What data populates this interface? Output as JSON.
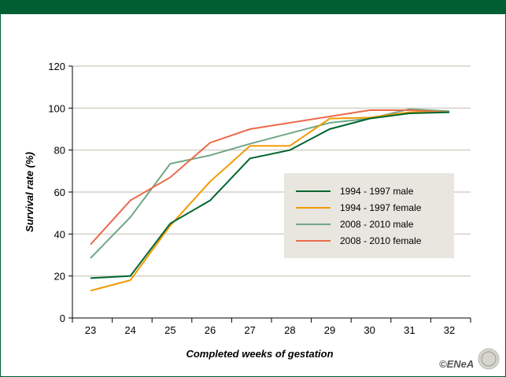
{
  "chart_data": {
    "type": "line",
    "xlabel": "Completed weeks of gestation",
    "ylabel": "Survival rate (%)",
    "ylim": [
      0,
      120
    ],
    "yticks": [
      0,
      20,
      40,
      60,
      80,
      100,
      120
    ],
    "x": [
      23,
      24,
      25,
      26,
      27,
      28,
      29,
      30,
      31,
      32
    ],
    "grid": true,
    "legend_position": "center-right",
    "series": [
      {
        "name": "1994 - 1997 male",
        "color": "#00662f",
        "values": [
          19,
          20,
          45,
          56,
          76,
          80,
          90,
          95,
          97.5,
          98
        ]
      },
      {
        "name": "1994 - 1997 female",
        "color": "#f29a00",
        "values": [
          13,
          18,
          44,
          65,
          82,
          82,
          95,
          95.5,
          98,
          98
        ]
      },
      {
        "name": "2008 - 2010 male",
        "color": "#6fa785",
        "values": [
          28.5,
          48,
          73.5,
          77.5,
          83,
          88,
          93,
          95,
          99.5,
          98.5
        ]
      },
      {
        "name": "2008 - 2010 female",
        "color": "#ec6a4c",
        "values": [
          35,
          56,
          67,
          83.5,
          90,
          93,
          96,
          99,
          99,
          98
        ]
      }
    ]
  },
  "credit": "©ENeA",
  "colors": {
    "brand": "#005f32",
    "legend_bg": "#e8e6df",
    "grid": "#d3d0c6"
  }
}
